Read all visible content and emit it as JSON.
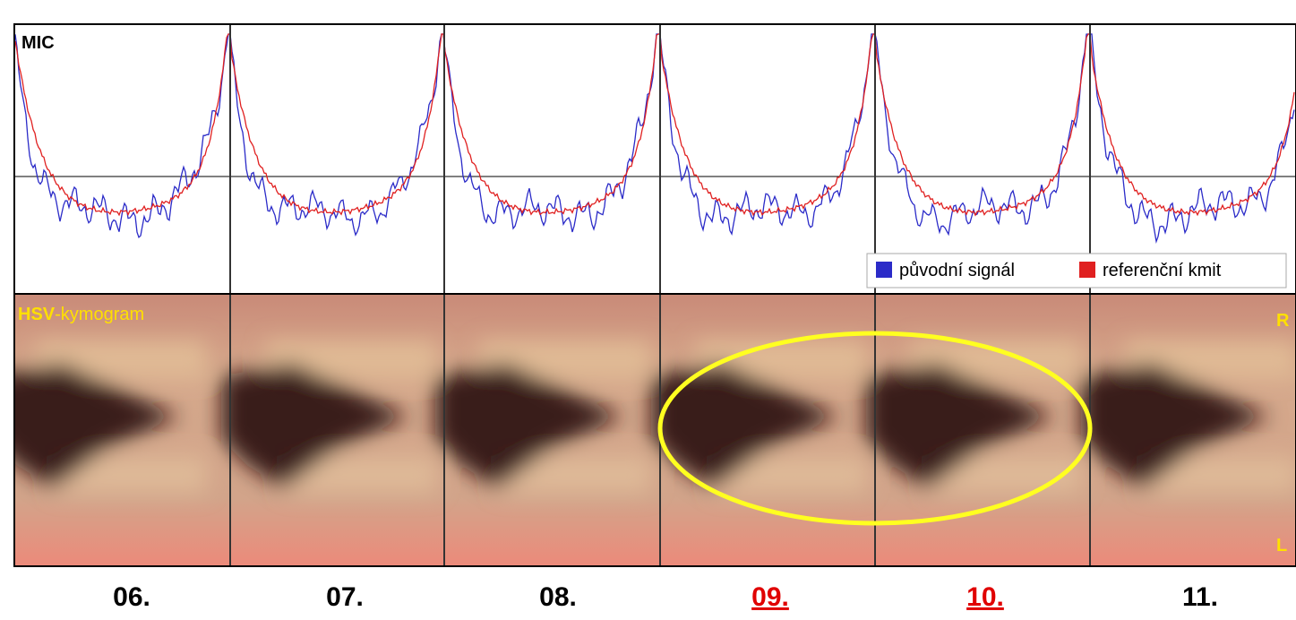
{
  "chart_data": {
    "type": "figure",
    "mic_label": "MIC",
    "legend": [
      "původní signál",
      "referenční kmit"
    ],
    "series_colors": [
      "#2b2bc8",
      "#e02020"
    ],
    "kymogram_label": {
      "bold": "HSV",
      "rest": "-kymogram"
    },
    "side_labels": {
      "top": "R",
      "bottom": "L"
    },
    "periods": [
      {
        "label": "06.",
        "color": "#000000"
      },
      {
        "label": "07.",
        "color": "#000000"
      },
      {
        "label": "08.",
        "color": "#000000"
      },
      {
        "label": "09.",
        "color": "#e00000"
      },
      {
        "label": "10.",
        "color": "#e00000"
      },
      {
        "label": "11.",
        "color": "#000000"
      }
    ]
  }
}
